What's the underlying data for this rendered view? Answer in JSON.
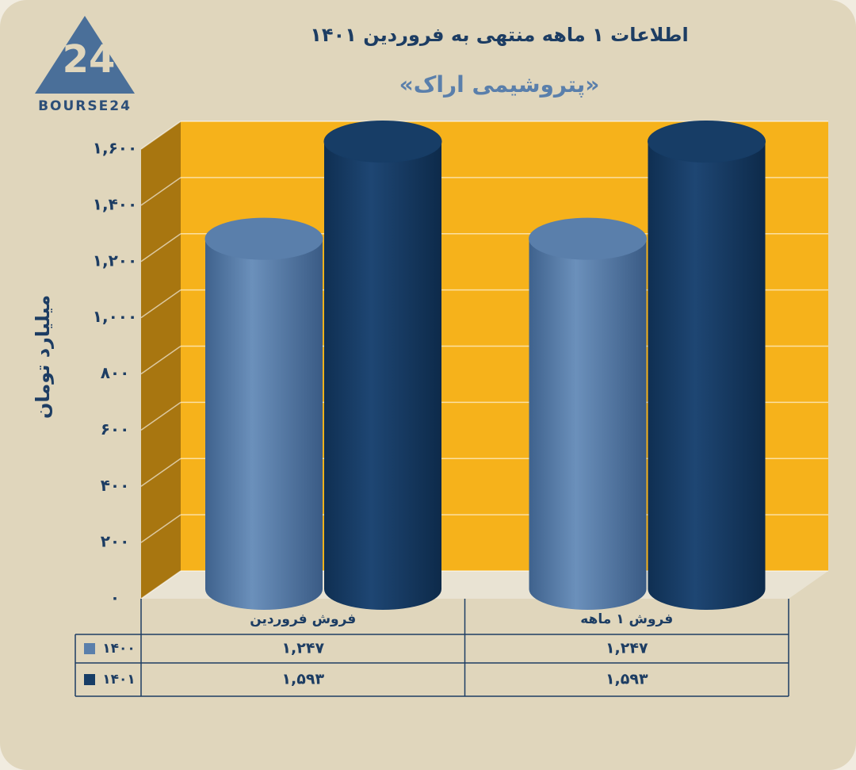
{
  "chart_data": {
    "type": "cylinder-bar",
    "title": "اطلاعات ۱ ماهه منتهی به فروردین ۱۴۰۱",
    "subtitle": "«پتروشیمی اراک»",
    "y_label": "میلیارد تومان",
    "logo": {
      "mark": "24",
      "text": "BOURSE24"
    },
    "categories": [
      "فروش فروردین",
      "فروش ۱ ماهه"
    ],
    "series": [
      {
        "name": "۱۴۰۰",
        "color": "#5a7fab",
        "values": [
          1247,
          1247
        ],
        "value_labels": [
          "۱,۲۴۷",
          "۱,۲۴۷"
        ]
      },
      {
        "name": "۱۴۰۱",
        "color": "#173d66",
        "values": [
          1593,
          1593
        ],
        "value_labels": [
          "۱,۵۹۳",
          "۱,۵۹۳"
        ]
      }
    ],
    "ylim": [
      0,
      1600
    ],
    "yticks": [
      {
        "value": 0,
        "label": "۰"
      },
      {
        "value": 200,
        "label": "۲۰۰"
      },
      {
        "value": 400,
        "label": "۴۰۰"
      },
      {
        "value": 600,
        "label": "۶۰۰"
      },
      {
        "value": 800,
        "label": "۸۰۰"
      },
      {
        "value": 1000,
        "label": "۱,۰۰۰"
      },
      {
        "value": 1200,
        "label": "۱,۲۰۰"
      },
      {
        "value": 1400,
        "label": "۱,۴۰۰"
      },
      {
        "value": 1600,
        "label": "۱,۶۰۰"
      }
    ],
    "grid": true,
    "wall_color": "#f6b21b"
  }
}
